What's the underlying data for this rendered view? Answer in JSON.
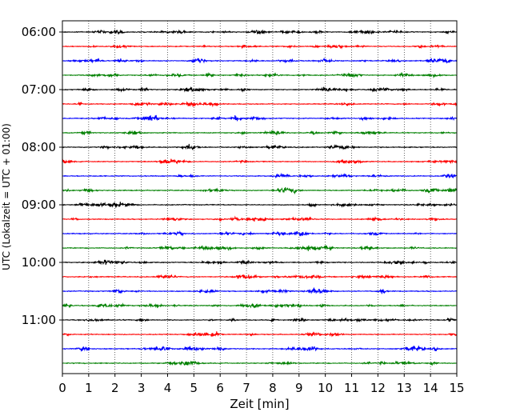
{
  "chart_data": {
    "type": "line",
    "title": "",
    "xlabel": "Zeit  [min]",
    "ylabel": "UTC (Lokalzeit = UTC + 01:00)",
    "xlim": [
      0,
      15
    ],
    "x_ticks": [
      "0",
      "1",
      "2",
      "3",
      "4",
      "5",
      "6",
      "7",
      "8",
      "9",
      "10",
      "11",
      "12",
      "13",
      "14",
      "15"
    ],
    "y_ticks": [
      {
        "label": "06:00",
        "trace_index": 0
      },
      {
        "label": "07:00",
        "trace_index": 4
      },
      {
        "label": "08:00",
        "trace_index": 8
      },
      {
        "label": "09:00",
        "trace_index": 12
      },
      {
        "label": "10:00",
        "trace_index": 16
      },
      {
        "label": "11:00",
        "trace_index": 20
      }
    ],
    "trace_interval_minutes": 15,
    "trace_count": 24,
    "trace_colors": [
      "#000000",
      "#ff0000",
      "#0000ff",
      "#008000"
    ],
    "grid": "vertical dotted lines at each minute",
    "series": [
      {
        "start": "06:00",
        "color": "#000000"
      },
      {
        "start": "06:15",
        "color": "#ff0000"
      },
      {
        "start": "06:30",
        "color": "#0000ff"
      },
      {
        "start": "06:45",
        "color": "#008000"
      },
      {
        "start": "07:00",
        "color": "#000000"
      },
      {
        "start": "07:15",
        "color": "#ff0000"
      },
      {
        "start": "07:30",
        "color": "#0000ff"
      },
      {
        "start": "07:45",
        "color": "#008000"
      },
      {
        "start": "08:00",
        "color": "#000000"
      },
      {
        "start": "08:15",
        "color": "#ff0000"
      },
      {
        "start": "08:30",
        "color": "#0000ff"
      },
      {
        "start": "08:45",
        "color": "#008000"
      },
      {
        "start": "09:00",
        "color": "#000000"
      },
      {
        "start": "09:15",
        "color": "#ff0000"
      },
      {
        "start": "09:30",
        "color": "#0000ff"
      },
      {
        "start": "09:45",
        "color": "#008000"
      },
      {
        "start": "10:00",
        "color": "#000000"
      },
      {
        "start": "10:15",
        "color": "#ff0000"
      },
      {
        "start": "10:30",
        "color": "#0000ff"
      },
      {
        "start": "10:45",
        "color": "#008000"
      },
      {
        "start": "11:00",
        "color": "#000000"
      },
      {
        "start": "11:15",
        "color": "#ff0000"
      },
      {
        "start": "11:30",
        "color": "#0000ff"
      },
      {
        "start": "11:45",
        "color": "#008000"
      }
    ]
  }
}
